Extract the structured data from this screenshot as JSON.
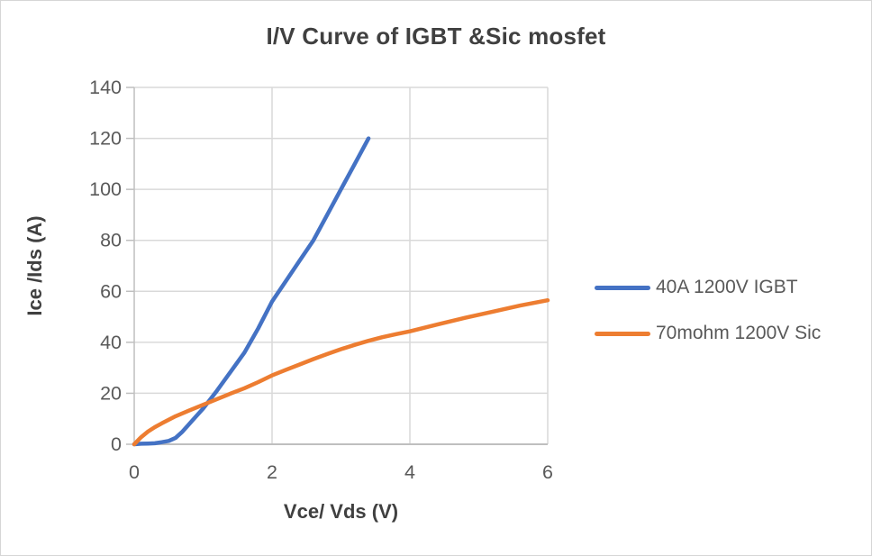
{
  "chart_data": {
    "type": "line",
    "title": "I/V Curve of IGBT &Sic mosfet",
    "xlabel": "Vce/ Vds (V)",
    "ylabel": "Ice /Ids (A)",
    "xlim": [
      0,
      6
    ],
    "ylim": [
      0,
      140
    ],
    "x_ticks": [
      0,
      2,
      4,
      6
    ],
    "y_ticks": [
      0,
      20,
      40,
      60,
      80,
      100,
      120,
      140
    ],
    "grid": true,
    "legend_position": "right",
    "colors": {
      "grid": "#d9d9d9",
      "axis": "#bfbfbf",
      "tick_text": "#595959",
      "title_text": "#404040"
    },
    "series": [
      {
        "name": "40A 1200V IGBT",
        "color": "#4472C4",
        "points": [
          [
            0,
            0
          ],
          [
            0.1,
            0.2
          ],
          [
            0.2,
            0.3
          ],
          [
            0.3,
            0.4
          ],
          [
            0.4,
            0.8
          ],
          [
            0.5,
            1.3
          ],
          [
            0.6,
            2.5
          ],
          [
            0.7,
            5
          ],
          [
            0.8,
            8
          ],
          [
            0.9,
            11
          ],
          [
            1.0,
            14
          ],
          [
            1.2,
            21
          ],
          [
            1.4,
            28.5
          ],
          [
            1.6,
            36
          ],
          [
            1.8,
            45.5
          ],
          [
            2.0,
            56
          ],
          [
            2.2,
            64
          ],
          [
            2.4,
            72
          ],
          [
            2.6,
            80
          ],
          [
            2.8,
            90
          ],
          [
            3.0,
            100
          ],
          [
            3.2,
            110
          ],
          [
            3.4,
            120
          ]
        ]
      },
      {
        "name": "70mohm 1200V Sic",
        "color": "#ED7D31",
        "points": [
          [
            0,
            0
          ],
          [
            0.1,
            2.8
          ],
          [
            0.2,
            5
          ],
          [
            0.3,
            6.7
          ],
          [
            0.4,
            8.2
          ],
          [
            0.6,
            11
          ],
          [
            0.8,
            13.3
          ],
          [
            1.0,
            15.5
          ],
          [
            1.2,
            17.7
          ],
          [
            1.4,
            19.9
          ],
          [
            1.6,
            22
          ],
          [
            1.8,
            24.4
          ],
          [
            2.0,
            27
          ],
          [
            2.2,
            29.2
          ],
          [
            2.4,
            31.3
          ],
          [
            2.6,
            33.4
          ],
          [
            2.8,
            35.4
          ],
          [
            3.0,
            37.3
          ],
          [
            3.2,
            39
          ],
          [
            3.4,
            40.6
          ],
          [
            3.6,
            42
          ],
          [
            3.8,
            43.2
          ],
          [
            4.0,
            44.3
          ],
          [
            4.4,
            47
          ],
          [
            4.8,
            49.6
          ],
          [
            5.2,
            52
          ],
          [
            5.6,
            54.4
          ],
          [
            6.0,
            56.5
          ]
        ]
      }
    ]
  }
}
